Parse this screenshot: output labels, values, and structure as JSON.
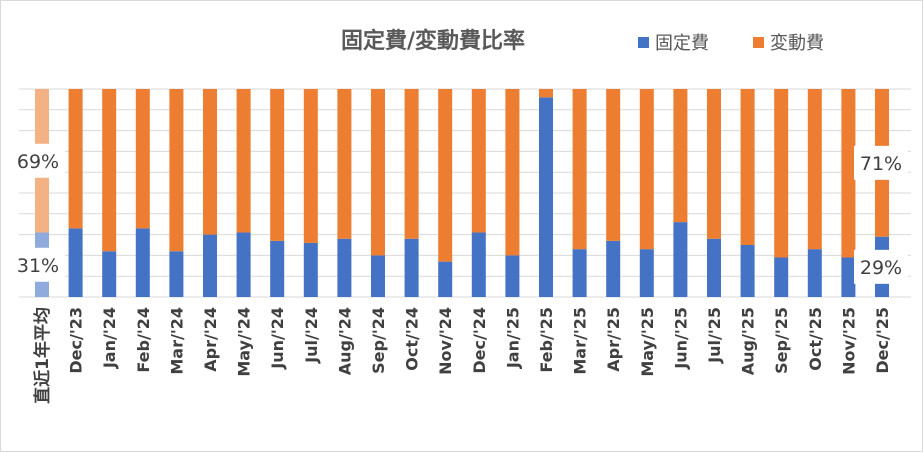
{
  "chart_data": {
    "type": "bar",
    "stacked": true,
    "percent": true,
    "title": "固定費/変動費比率",
    "legend": {
      "position": "top-right"
    },
    "grid": true,
    "ylim": [
      0,
      100
    ],
    "categories": [
      "直近1年平均",
      "Dec/'23",
      "Jan/'24",
      "Feb/'24",
      "Mar/'24",
      "Apr/'24",
      "May/'24",
      "Jun/'24",
      "Jul/'24",
      "Aug/'24",
      "Sep/'24",
      "Oct/'24",
      "Nov/'24",
      "Dec/'24",
      "Jan/'25",
      "Feb/'25",
      "Mar/'25",
      "Apr/'25",
      "May/'25",
      "Jun/'25",
      "Jul/'25",
      "Aug/'25",
      "Sep/'25",
      "Oct/'25",
      "Nov/'25",
      "Dec/'25"
    ],
    "series": [
      {
        "name": "固定費",
        "color": "#4472c4",
        "values": [
          31,
          33,
          22,
          33,
          22,
          30,
          31,
          27,
          26,
          28,
          20,
          28,
          17,
          31,
          20,
          96,
          23,
          27,
          23,
          36,
          28,
          25,
          19,
          23,
          19,
          29
        ]
      },
      {
        "name": "変動費",
        "color": "#ed7d31",
        "values": [
          69,
          67,
          78,
          67,
          78,
          70,
          69,
          73,
          74,
          72,
          80,
          72,
          83,
          69,
          80,
          4,
          77,
          73,
          77,
          64,
          72,
          75,
          81,
          77,
          81,
          71
        ]
      }
    ],
    "highlight_first": {
      "fixed_color": "#8faadc",
      "variable_color": "#f4b183"
    },
    "annotations": [
      {
        "category": "直近1年平均",
        "series": "固定費",
        "text": "31%"
      },
      {
        "category": "直近1年平均",
        "series": "変動費",
        "text": "69%"
      },
      {
        "category": "Dec/'25",
        "series": "固定費",
        "text": "29%"
      },
      {
        "category": "Dec/'25",
        "series": "変動費",
        "text": "71%"
      }
    ]
  }
}
